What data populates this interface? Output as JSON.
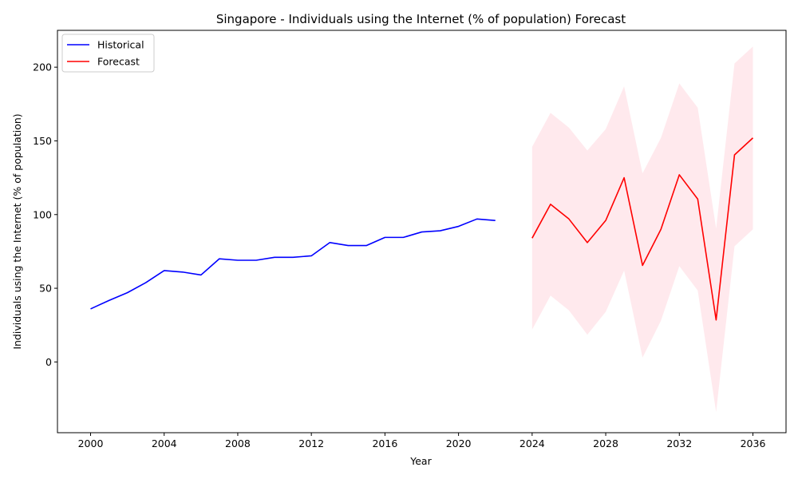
{
  "chart_data": {
    "type": "line",
    "title": "Singapore - Individuals using the Internet (% of population) Forecast",
    "xlabel": "Year",
    "ylabel": "Individuals using the Internet (% of population)",
    "xlim": [
      1998.2,
      2037.8
    ],
    "ylim": [
      -48,
      225
    ],
    "x_ticks": [
      2000,
      2004,
      2008,
      2012,
      2016,
      2020,
      2024,
      2028,
      2032,
      2036
    ],
    "y_ticks": [
      0,
      50,
      100,
      150,
      200
    ],
    "grid": false,
    "legend_position": "top-left",
    "series": [
      {
        "name": "Historical",
        "color": "#0000ff",
        "x": [
          2000,
          2001,
          2002,
          2003,
          2004,
          2005,
          2006,
          2007,
          2008,
          2009,
          2010,
          2011,
          2012,
          2013,
          2014,
          2015,
          2016,
          2017,
          2018,
          2019,
          2020,
          2021,
          2022
        ],
        "y": [
          36,
          41.7,
          47,
          53.8,
          62,
          61,
          59,
          70,
          69,
          69,
          71,
          71,
          72,
          81,
          79,
          79,
          84.5,
          84.5,
          88.2,
          89,
          92,
          97,
          96
        ]
      },
      {
        "name": "Forecast",
        "color": "#ff0000",
        "x": [
          2024,
          2025,
          2026,
          2027,
          2028,
          2029,
          2030,
          2031,
          2032,
          2033,
          2034,
          2035,
          2036
        ],
        "y": [
          84,
          107,
          97,
          81,
          96,
          125,
          65.5,
          90,
          127,
          110.5,
          28.5,
          140.5,
          152
        ]
      }
    ],
    "confidence_band": {
      "color": "#ffc0cb",
      "x": [
        2024,
        2025,
        2026,
        2027,
        2028,
        2029,
        2030,
        2031,
        2032,
        2033,
        2034,
        2035,
        2036
      ],
      "lower": [
        22,
        45,
        35,
        18.5,
        34,
        62,
        3,
        28,
        65,
        48.5,
        -34,
        78.5,
        90
      ],
      "upper": [
        146,
        169,
        159,
        143.5,
        158,
        187,
        128,
        152,
        189,
        172.5,
        90.5,
        202.5,
        214
      ]
    }
  }
}
